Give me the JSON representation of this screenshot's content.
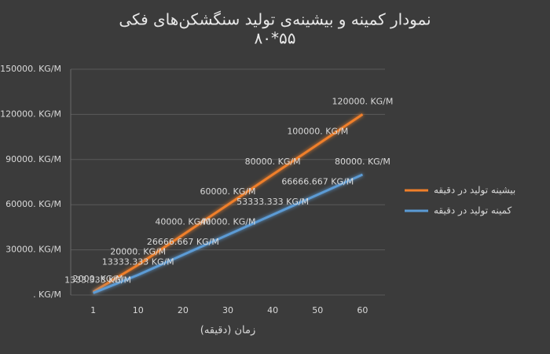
{
  "chart_data": {
    "type": "line",
    "title": "نمودار کمینه و بیشینه‌ی تولید سنگشکن‌های فکی",
    "subtitle": "۸۰*۵۵",
    "x_label": "زمان (دقیقه)",
    "categories": [
      "1",
      "10",
      "20",
      "30",
      "40",
      "50",
      "60"
    ],
    "series": [
      {
        "name": "بیشینه تولید در دقیقه",
        "color": "#f07f2a",
        "values": [
          2000,
          20000,
          40000,
          60000,
          80000,
          100000,
          120000
        ],
        "value_labels": [
          "2000. KG/M",
          "20000. KG/M",
          "40000. KG/M",
          "60000. KG/M",
          "80000. KG/M",
          "100000. KG/M",
          "120000. KG/M"
        ]
      },
      {
        "name": "کمینه تولید در دقیقه",
        "color": "#5b9bd5",
        "values": [
          1333.333,
          13333.333,
          26666.667,
          40000,
          53333.333,
          66666.667,
          80000
        ],
        "value_labels": [
          "1333.333 KG/M",
          "13333.333 KG/M",
          "26666.667 KG/M",
          "40000. KG/M",
          "53333.333 KG/M",
          "66666.667 KG/M",
          "80000. KG/M"
        ]
      }
    ],
    "ylim": [
      0,
      150000
    ],
    "yticks": [
      {
        "value": 0,
        "label": ". KG/M"
      },
      {
        "value": 30000,
        "label": "30000. KG/M"
      },
      {
        "value": 60000,
        "label": "60000. KG/M"
      },
      {
        "value": 90000,
        "label": "90000. KG/M"
      },
      {
        "value": 120000,
        "label": "120000. KG/M"
      },
      {
        "value": 150000,
        "label": "150000. KG/M"
      }
    ],
    "grid": true
  }
}
